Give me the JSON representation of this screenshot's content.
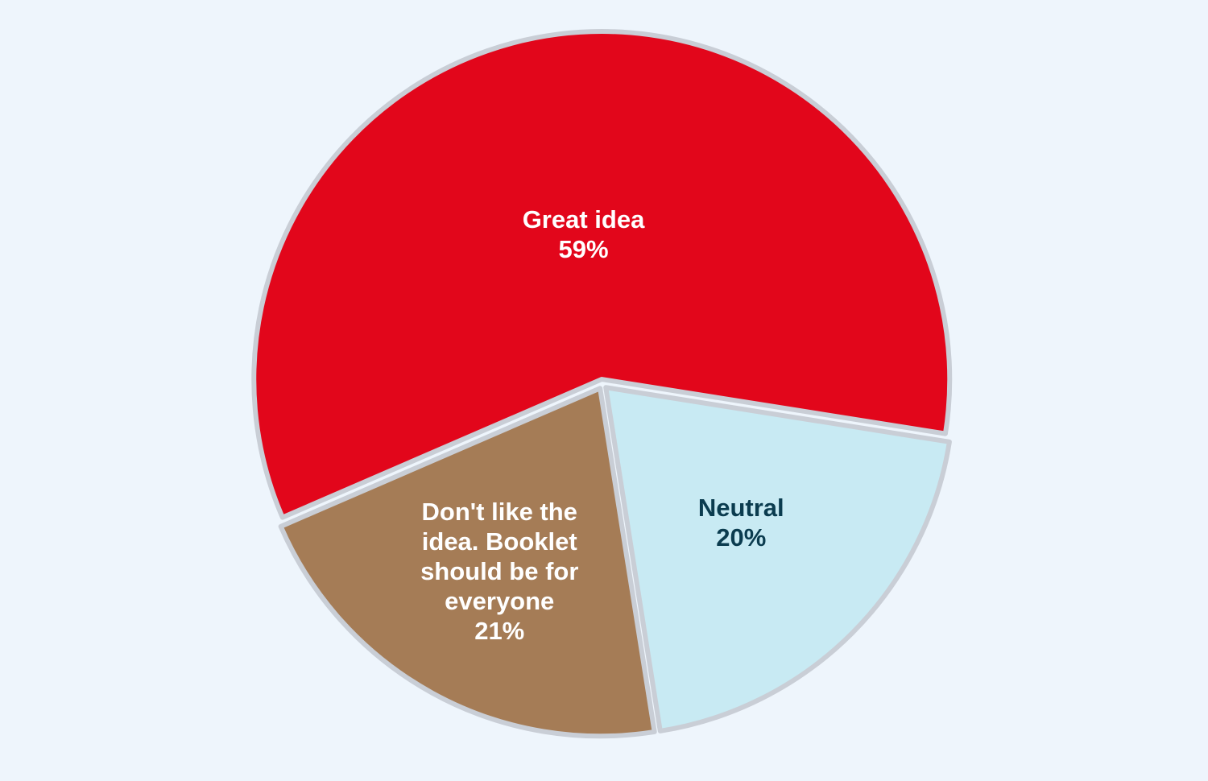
{
  "chart_data": {
    "type": "pie",
    "categories": [
      "Great idea",
      "Neutral",
      "Don't like the idea. Booklet should be for everyone"
    ],
    "values": [
      59,
      20,
      21
    ],
    "value_labels": [
      "59%",
      "20%",
      "21%"
    ],
    "colors": [
      "#e2061b",
      "#c8eaf3",
      "#a57c56"
    ],
    "label_colors": [
      "#ffffff",
      "#0b3c4f",
      "#ffffff"
    ]
  }
}
